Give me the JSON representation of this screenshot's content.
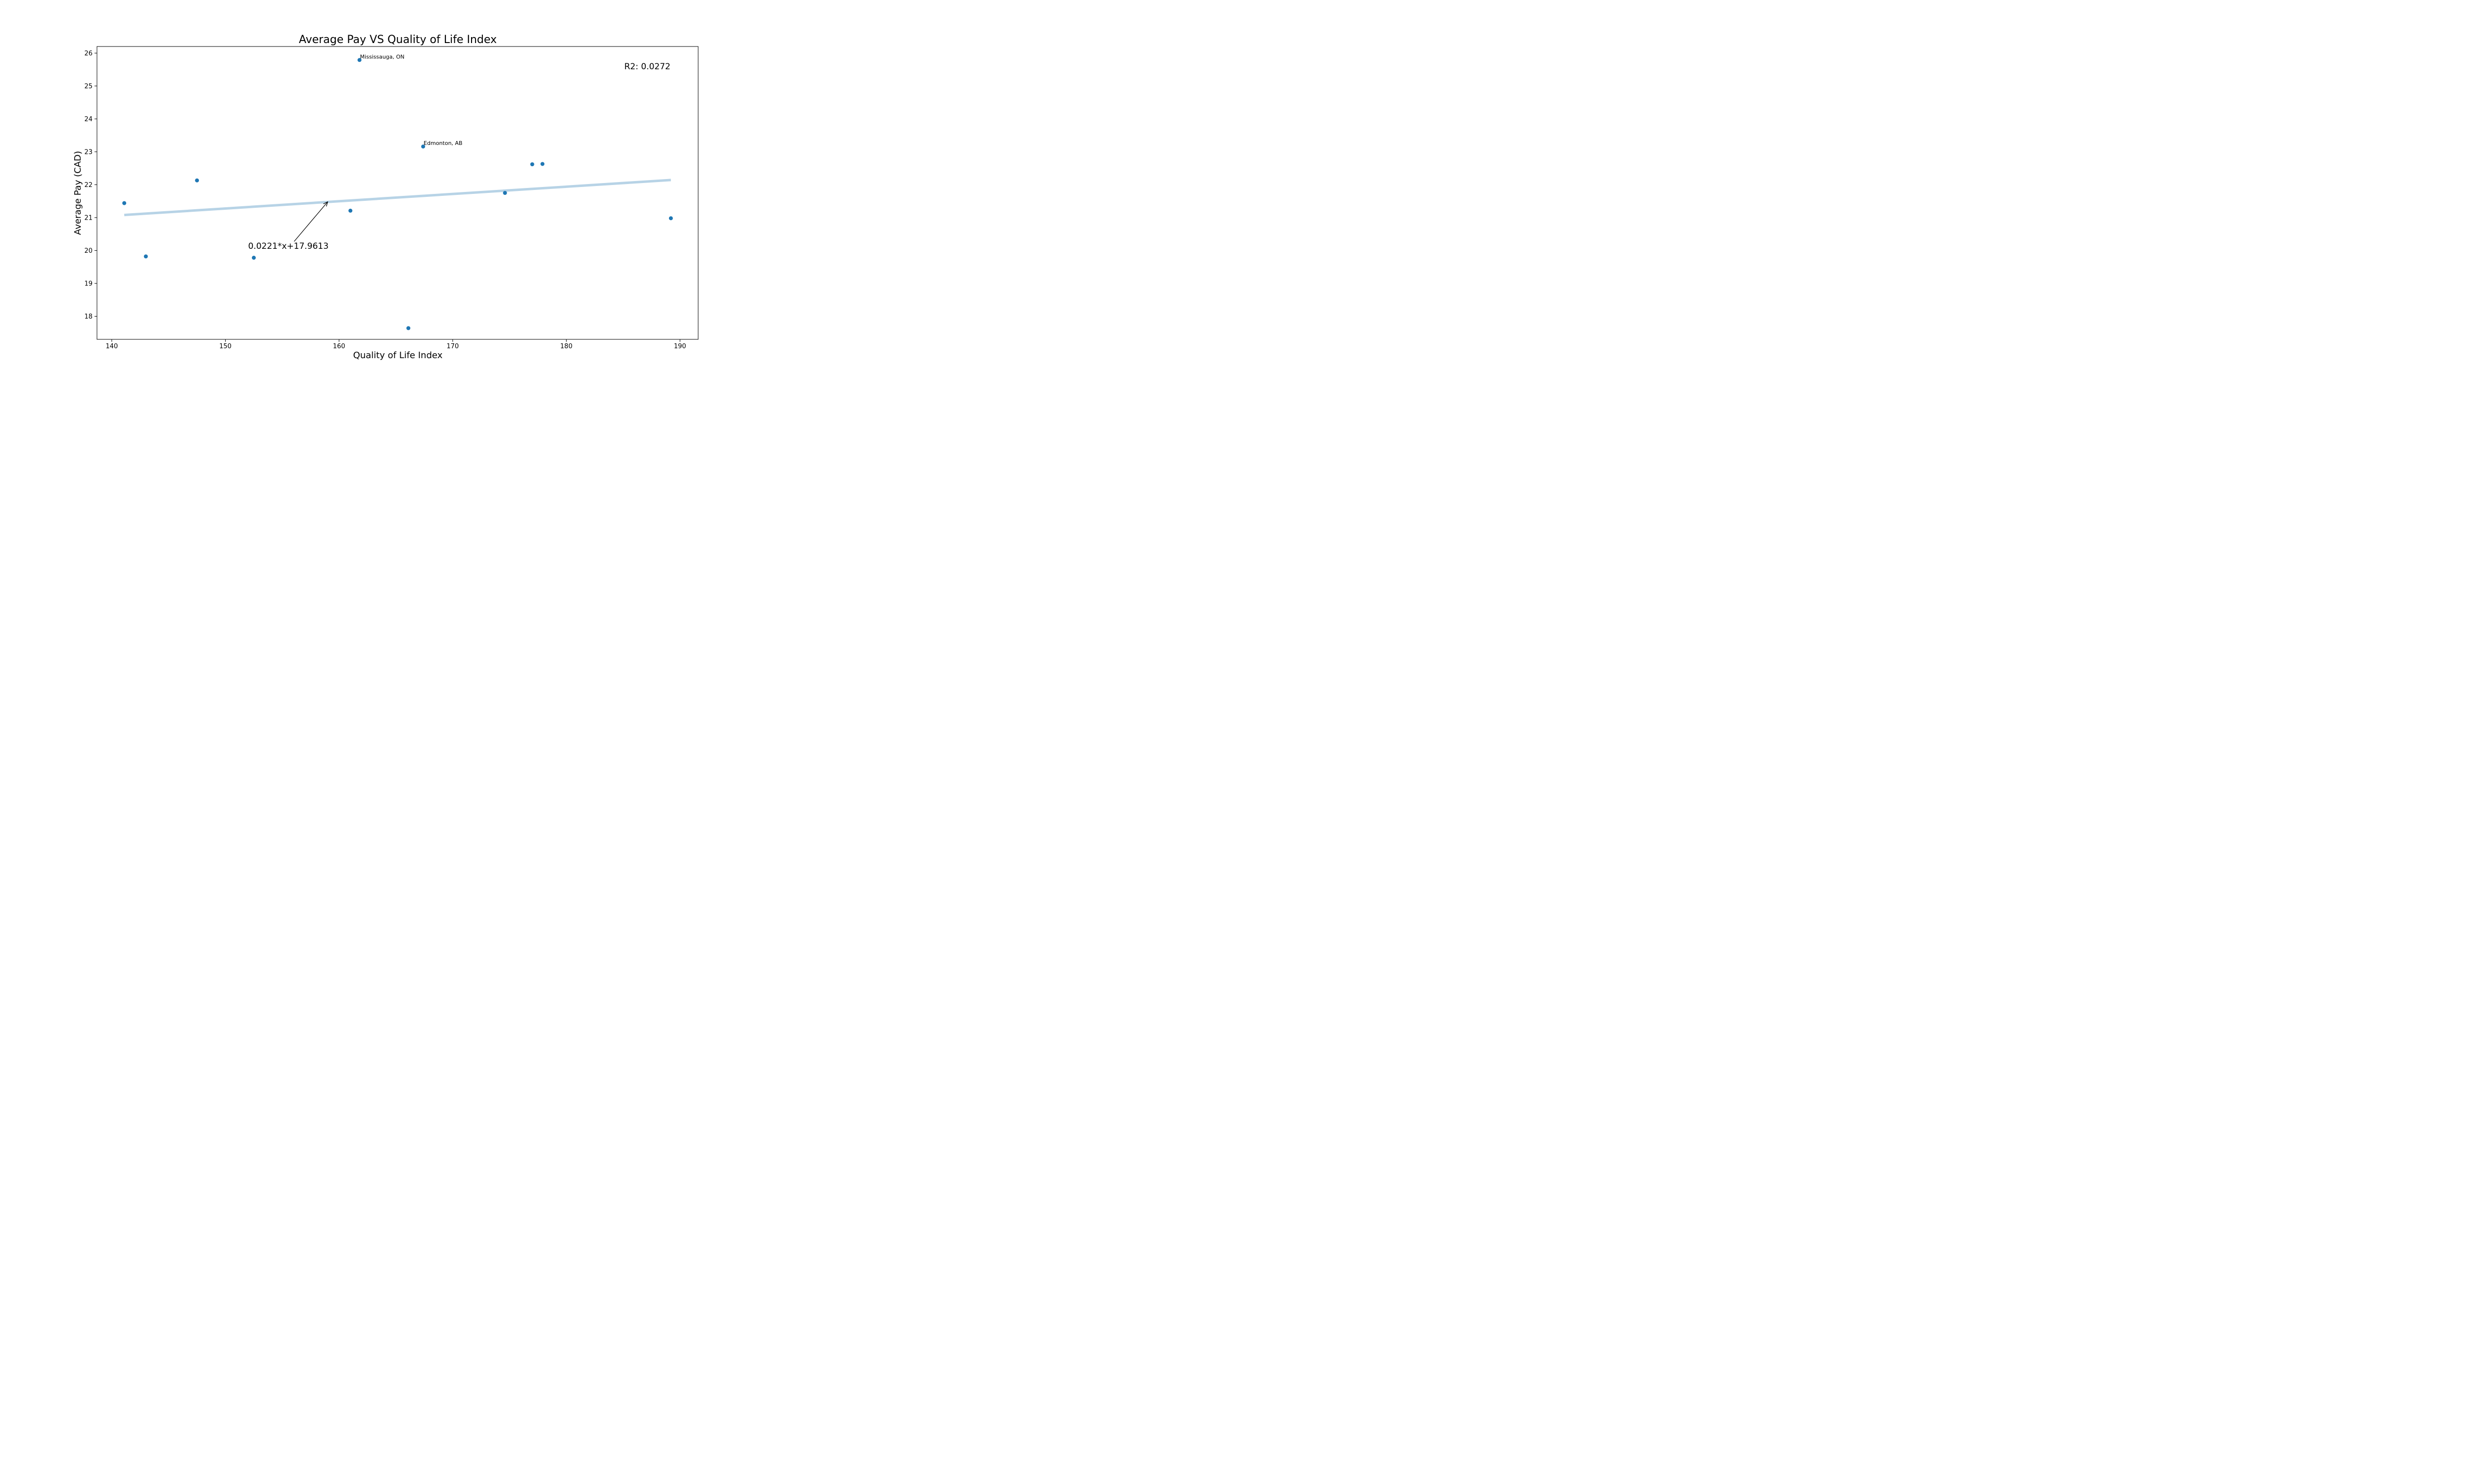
{
  "chart_data": {
    "type": "scatter",
    "title": "Average Pay VS Quality of Life Index",
    "xlabel": "Quality of Life Index",
    "ylabel": "Average Pay (CAD)",
    "xlim": [
      138.7,
      191.6
    ],
    "ylim": [
      17.3,
      26.2
    ],
    "xticks": [
      140,
      150,
      160,
      170,
      180,
      190
    ],
    "yticks": [
      18,
      19,
      20,
      21,
      22,
      23,
      24,
      25,
      26
    ],
    "grid": false,
    "legend": "none",
    "points": [
      {
        "x": 141.1,
        "y": 21.44,
        "label": ""
      },
      {
        "x": 143.0,
        "y": 19.82,
        "label": ""
      },
      {
        "x": 147.5,
        "y": 22.13,
        "label": ""
      },
      {
        "x": 152.5,
        "y": 19.78,
        "label": ""
      },
      {
        "x": 161.0,
        "y": 21.21,
        "label": ""
      },
      {
        "x": 161.8,
        "y": 25.79,
        "label": "Mississauga, ON"
      },
      {
        "x": 166.1,
        "y": 17.64,
        "label": ""
      },
      {
        "x": 167.4,
        "y": 23.16,
        "label": "Edmonton, AB"
      },
      {
        "x": 174.6,
        "y": 21.75,
        "label": ""
      },
      {
        "x": 177.0,
        "y": 22.62,
        "label": ""
      },
      {
        "x": 177.9,
        "y": 22.63,
        "label": ""
      },
      {
        "x": 189.2,
        "y": 20.98,
        "label": ""
      }
    ],
    "trendline": {
      "slope": 0.0221,
      "intercept": 17.9613,
      "x_range": [
        141.1,
        189.2
      ],
      "equation_text": "0.0221*x+17.9613",
      "annotation_text_at": [
        152.0,
        20.05
      ],
      "annotation_arrow_to": [
        159.0,
        21.48
      ]
    },
    "r2_text": "R2: 0.0272",
    "colors": {
      "points": "#1f77b4",
      "trendline": "#b7d3e6",
      "axes": "#000000"
    }
  }
}
